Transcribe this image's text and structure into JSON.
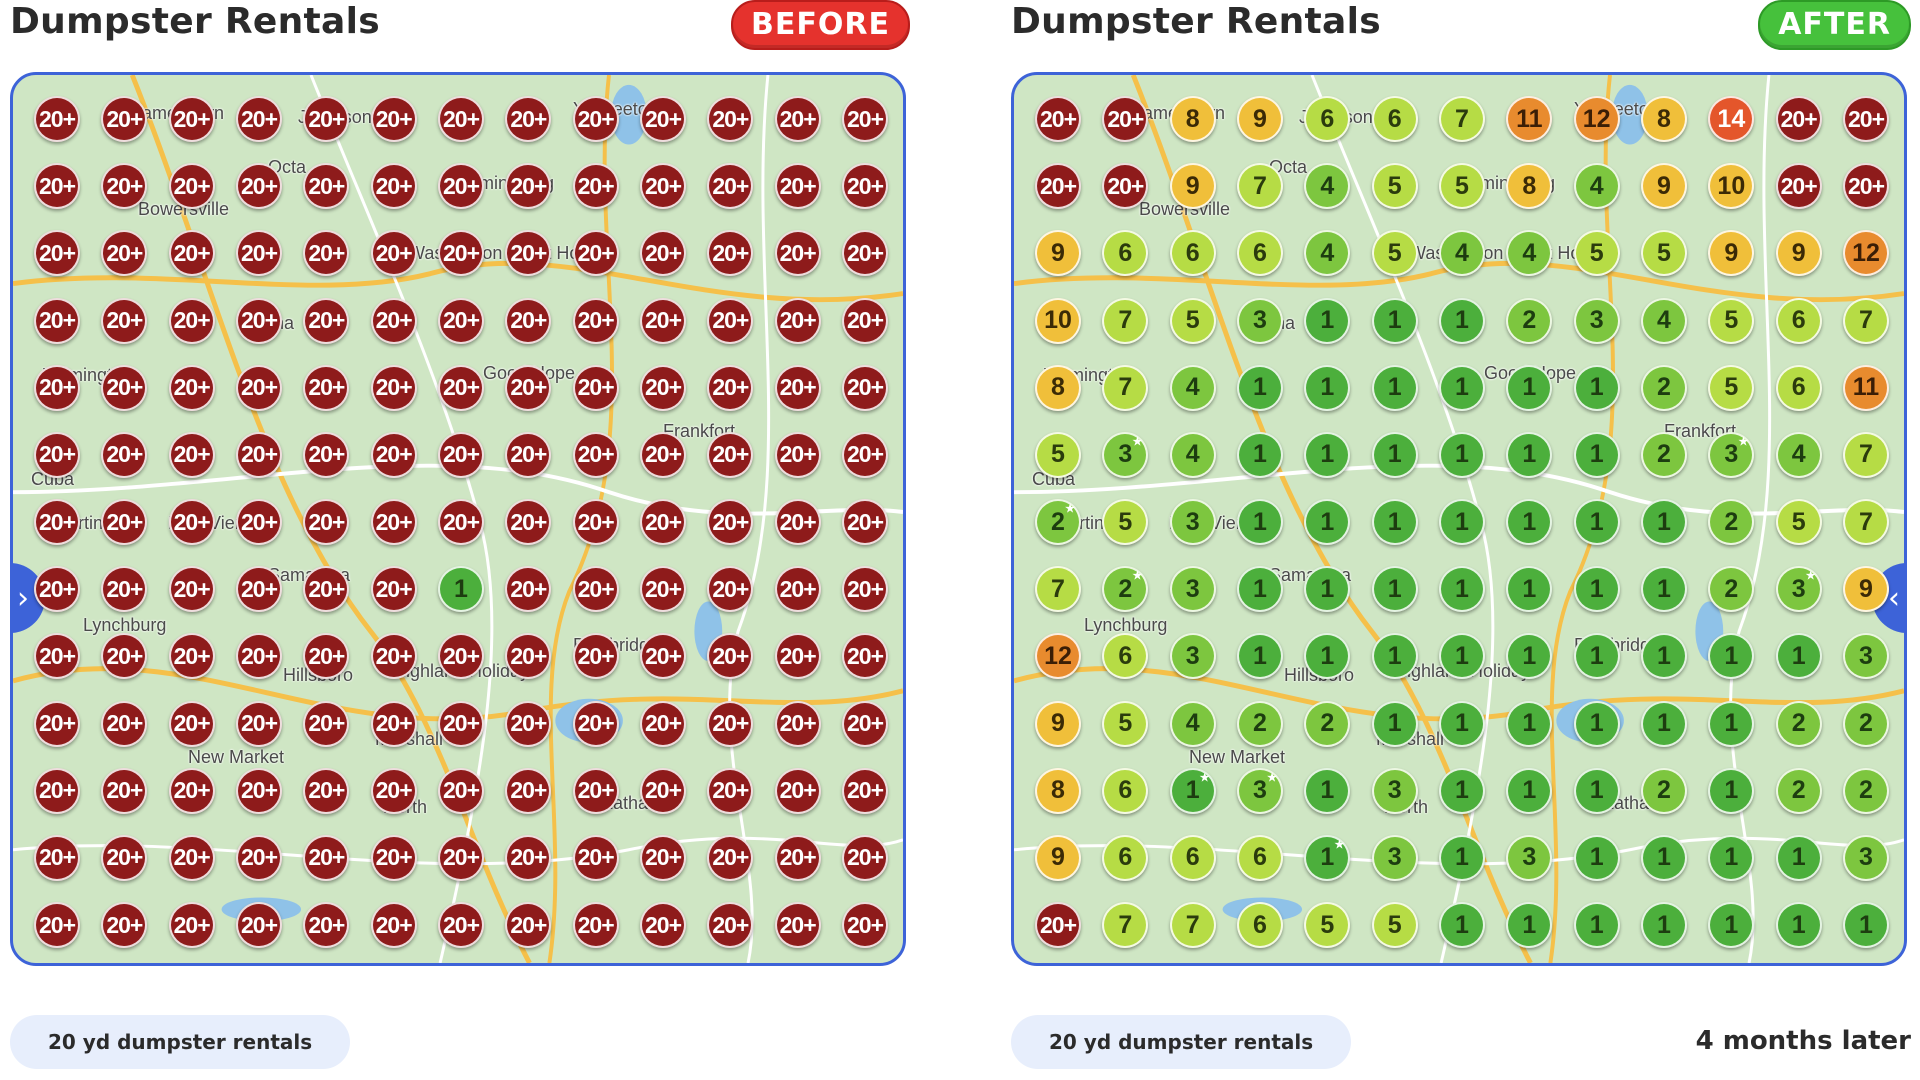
{
  "colors": {
    "map_border": "#3d63d8",
    "marker_20plus": "#8e1b1b",
    "marker_1": "#4caf3c",
    "marker_2_4": "#7dc63f",
    "marker_5_7": "#b6dc45",
    "marker_8_10": "#f0bf3a",
    "marker_11_13": "#e88b2e",
    "marker_14plus": "#e4562b",
    "before_badge": "#e5322d",
    "after_badge": "#46c13c"
  },
  "before": {
    "title": "Dumpster Rentals",
    "badge": "BEFORE",
    "keyword": "20 yd dumpster rentals",
    "nav_icon": "chevron-right-icon",
    "grid": [
      [
        "20+",
        "20+",
        "20+",
        "20+",
        "20+",
        "20+",
        "20+",
        "20+",
        "20+",
        "20+",
        "20+",
        "20+",
        "20+"
      ],
      [
        "20+",
        "20+",
        "20+",
        "20+",
        "20+",
        "20+",
        "20+",
        "20+",
        "20+",
        "20+",
        "20+",
        "20+",
        "20+"
      ],
      [
        "20+",
        "20+",
        "20+",
        "20+",
        "20+",
        "20+",
        "20+",
        "20+",
        "20+",
        "20+",
        "20+",
        "20+",
        "20+"
      ],
      [
        "20+",
        "20+",
        "20+",
        "20+",
        "20+",
        "20+",
        "20+",
        "20+",
        "20+",
        "20+",
        "20+",
        "20+",
        "20+"
      ],
      [
        "20+",
        "20+",
        "20+",
        "20+",
        "20+",
        "20+",
        "20+",
        "20+",
        "20+",
        "20+",
        "20+",
        "20+",
        "20+"
      ],
      [
        "20+",
        "20+",
        "20+",
        "20+",
        "20+",
        "20+",
        "20+",
        "20+",
        "20+",
        "20+",
        "20+",
        "20+",
        "20+"
      ],
      [
        "20+",
        "20+",
        "20+",
        "20+",
        "20+",
        "20+",
        "20+",
        "20+",
        "20+",
        "20+",
        "20+",
        "20+",
        "20+"
      ],
      [
        "20+",
        "20+",
        "20+",
        "20+",
        "20+",
        "20+",
        "1",
        "20+",
        "20+",
        "20+",
        "20+",
        "20+",
        "20+"
      ],
      [
        "20+",
        "20+",
        "20+",
        "20+",
        "20+",
        "20+",
        "20+",
        "20+",
        "20+",
        "20+",
        "20+",
        "20+",
        "20+"
      ],
      [
        "20+",
        "20+",
        "20+",
        "20+",
        "20+",
        "20+",
        "20+",
        "20+",
        "20+",
        "20+",
        "20+",
        "20+",
        "20+"
      ],
      [
        "20+",
        "20+",
        "20+",
        "20+",
        "20+",
        "20+",
        "20+",
        "20+",
        "20+",
        "20+",
        "20+",
        "20+",
        "20+"
      ],
      [
        "20+",
        "20+",
        "20+",
        "20+",
        "20+",
        "20+",
        "20+",
        "20+",
        "20+",
        "20+",
        "20+",
        "20+",
        "20+"
      ],
      [
        "20+",
        "20+",
        "20+",
        "20+",
        "20+",
        "20+",
        "20+",
        "20+",
        "20+",
        "20+",
        "20+",
        "20+",
        "20+"
      ]
    ],
    "places": [
      "Jamestown",
      "Jeffersonville",
      "Yankeetown",
      "Bowersville",
      "Octa",
      "Bloomingburg",
      "Washington Court House",
      "Sabina",
      "Wilmington",
      "Good Hope",
      "Frankfort",
      "Cuba",
      "Martinsville",
      "New Vienna",
      "Samantha",
      "Lynchburg",
      "Bainbridge",
      "Hillsboro",
      "Highland Holiday",
      "Marshall",
      "New Market",
      "North",
      "Latham"
    ]
  },
  "after": {
    "title": "Dumpster Rentals",
    "badge": "AFTER",
    "keyword": "20 yd dumpster rentals",
    "footnote": "4 months later",
    "nav_icon": "chevron-left-icon",
    "grid": [
      [
        "20+",
        "20+",
        "8",
        "9",
        "6",
        "6",
        "7",
        "11",
        "12",
        "8",
        "14",
        "20+",
        "20+"
      ],
      [
        "20+",
        "20+",
        "9",
        "7",
        "4",
        "5",
        "5",
        "8",
        "4",
        "9",
        "10",
        "20+",
        "20+"
      ],
      [
        "9",
        "6",
        "6",
        "6",
        "4",
        "5",
        "4",
        "4",
        "5",
        "5",
        "9",
        "9",
        "12"
      ],
      [
        "10",
        "7",
        "5",
        "3",
        "1",
        "1",
        "1",
        "2",
        "3",
        "4",
        "5",
        "6",
        "7"
      ],
      [
        "8",
        "7",
        "4",
        "1",
        "1",
        "1",
        "1",
        "1",
        "1",
        "2",
        "5",
        "6",
        "11"
      ],
      [
        "5",
        "3*",
        "4",
        "1",
        "1",
        "1",
        "1",
        "1",
        "1",
        "2",
        "3*",
        "4",
        "7"
      ],
      [
        "2*",
        "5",
        "3",
        "1",
        "1",
        "1",
        "1",
        "1",
        "1",
        "1",
        "2",
        "5",
        "7"
      ],
      [
        "7",
        "2*",
        "3",
        "1",
        "1",
        "1",
        "1",
        "1",
        "1",
        "1",
        "2",
        "3*",
        "9"
      ],
      [
        "12",
        "6",
        "3",
        "1",
        "1",
        "1",
        "1",
        "1",
        "1",
        "1",
        "1",
        "1",
        "3"
      ],
      [
        "9",
        "5",
        "4",
        "2",
        "2",
        "1",
        "1",
        "1",
        "1",
        "1",
        "1",
        "2",
        "2"
      ],
      [
        "8",
        "6",
        "1*",
        "3*",
        "1",
        "3",
        "1",
        "1",
        "1",
        "2",
        "1",
        "2",
        "2"
      ],
      [
        "9",
        "6",
        "6",
        "6",
        "1*",
        "3",
        "1",
        "3",
        "1",
        "1",
        "1",
        "1",
        "3"
      ],
      [
        "20+",
        "7",
        "7",
        "6",
        "5",
        "5",
        "1",
        "1",
        "1",
        "1",
        "1",
        "1",
        "1"
      ]
    ],
    "places": [
      "Jamestown",
      "Jeffersonville",
      "Yankeetown",
      "Bowersville",
      "Octa",
      "Bloomingburg",
      "Washington Court House",
      "Sabina",
      "Wilmington",
      "Good Hope",
      "Frankfort",
      "Cuba",
      "Martinsville",
      "New Vienna",
      "Samantha",
      "Lynchburg",
      "Bainbridge",
      "Hillsboro",
      "Highland Holiday",
      "Marshall",
      "New Market",
      "North",
      "Latham"
    ]
  }
}
